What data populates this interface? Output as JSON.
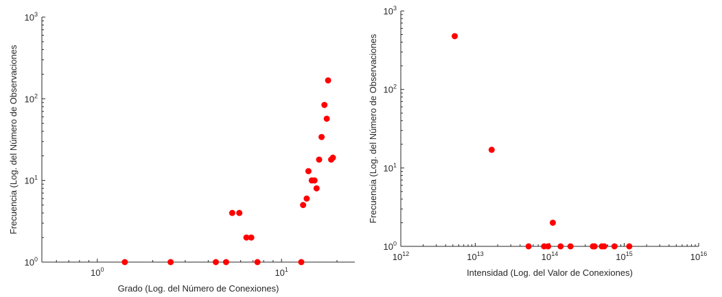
{
  "chart_data": [
    {
      "type": "scatter",
      "title": "",
      "xlabel": "Grado (Log. del Número de Conexiones)",
      "ylabel": "Frecuencia (Log. del Número de Observaciones",
      "xscale": "log",
      "yscale": "log",
      "xlim": [
        0.5,
        25
      ],
      "ylim": [
        1,
        1000
      ],
      "xticks": [
        "10^0",
        "10^1"
      ],
      "yticks": [
        "10^0",
        "10^1",
        "10^2",
        "10^3"
      ],
      "grid": false,
      "legend": null,
      "marker_color": "#ff0000",
      "points": [
        {
          "x": 1.41,
          "y": 1
        },
        {
          "x": 2.5,
          "y": 1
        },
        {
          "x": 4.4,
          "y": 1
        },
        {
          "x": 5.0,
          "y": 1
        },
        {
          "x": 5.4,
          "y": 4
        },
        {
          "x": 5.9,
          "y": 4
        },
        {
          "x": 6.45,
          "y": 2
        },
        {
          "x": 6.85,
          "y": 2
        },
        {
          "x": 7.4,
          "y": 1
        },
        {
          "x": 12.8,
          "y": 1
        },
        {
          "x": 13.1,
          "y": 5
        },
        {
          "x": 13.7,
          "y": 6
        },
        {
          "x": 14.0,
          "y": 13
        },
        {
          "x": 14.6,
          "y": 10
        },
        {
          "x": 15.1,
          "y": 10
        },
        {
          "x": 15.5,
          "y": 8
        },
        {
          "x": 16.0,
          "y": 18
        },
        {
          "x": 16.5,
          "y": 34
        },
        {
          "x": 17.1,
          "y": 84
        },
        {
          "x": 17.6,
          "y": 57
        },
        {
          "x": 17.9,
          "y": 168
        },
        {
          "x": 18.6,
          "y": 18
        },
        {
          "x": 19.0,
          "y": 19
        }
      ]
    },
    {
      "type": "scatter",
      "title": "",
      "xlabel": "Intensidad (Log. del Valor de Conexiones)",
      "ylabel": "Frecuencia (Log. del Número de Observaciones",
      "xscale": "log",
      "yscale": "log",
      "xlim": [
        1000000000000.0,
        1e+16
      ],
      "ylim": [
        1,
        1000
      ],
      "xticks": [
        "10^12",
        "10^13",
        "10^14",
        "10^15",
        "10^16"
      ],
      "yticks": [
        "10^0",
        "10^1",
        "10^2",
        "10^3"
      ],
      "grid": false,
      "legend": null,
      "marker_color": "#ff0000",
      "points": [
        {
          "x": 5300000000000.0,
          "y": 477
        },
        {
          "x": 16600000000000.0,
          "y": 17
        },
        {
          "x": 110000000000000.0,
          "y": 2
        },
        {
          "x": 52000000000000.0,
          "y": 1
        },
        {
          "x": 84000000000000.0,
          "y": 1
        },
        {
          "x": 95000000000000.0,
          "y": 1
        },
        {
          "x": 140000000000000.0,
          "y": 1
        },
        {
          "x": 190000000000000.0,
          "y": 1
        },
        {
          "x": 380000000000000.0,
          "y": 1
        },
        {
          "x": 400000000000000.0,
          "y": 1
        },
        {
          "x": 500000000000000.0,
          "y": 1
        },
        {
          "x": 540000000000000.0,
          "y": 1
        },
        {
          "x": 740000000000000.0,
          "y": 1
        },
        {
          "x": 1170000000000000.0,
          "y": 1
        }
      ]
    }
  ],
  "labels": {
    "left": {
      "xlabel": "Grado (Log. del Número de Conexiones)",
      "ylabel": "Frecuencia (Log. del Número de Observaciones",
      "xticks": [
        {
          "base": "10",
          "exp": "0"
        },
        {
          "base": "10",
          "exp": "1"
        }
      ],
      "yticks": [
        {
          "base": "10",
          "exp": "0"
        },
        {
          "base": "10",
          "exp": "1"
        },
        {
          "base": "10",
          "exp": "2"
        },
        {
          "base": "10",
          "exp": "3"
        }
      ]
    },
    "right": {
      "xlabel": "Intensidad (Log. del Valor de Conexiones)",
      "ylabel": "Frecuencia (Log. del Número de Observaciones",
      "xticks": [
        {
          "base": "10",
          "exp": "12"
        },
        {
          "base": "10",
          "exp": "13"
        },
        {
          "base": "10",
          "exp": "14"
        },
        {
          "base": "10",
          "exp": "15"
        },
        {
          "base": "10",
          "exp": "16"
        }
      ],
      "yticks": [
        {
          "base": "10",
          "exp": "0"
        },
        {
          "base": "10",
          "exp": "1"
        },
        {
          "base": "10",
          "exp": "2"
        },
        {
          "base": "10",
          "exp": "3"
        }
      ]
    }
  }
}
